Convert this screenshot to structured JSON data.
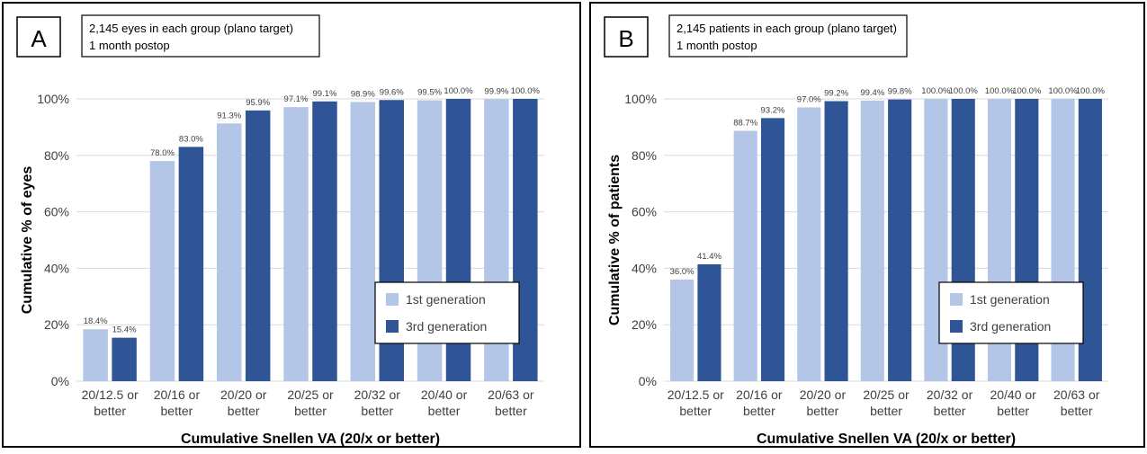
{
  "colors": {
    "gen1": "#b4c6e7",
    "gen3": "#2f5597",
    "grid": "#d9d9d9",
    "frame": "#000000"
  },
  "chart_data": [
    {
      "type": "bar",
      "panel_label": "A",
      "info_line1": "2,145 eyes in each group (plano target)",
      "info_line2": "1 month postop",
      "ylabel": "Cumulative % of eyes",
      "xlabel": "Cumulative Snellen VA (20/x or better)",
      "ylim": [
        0,
        100
      ],
      "yticks": [
        "0%",
        "20%",
        "40%",
        "60%",
        "80%",
        "100%"
      ],
      "categories": [
        [
          "20/12.5 or",
          "better"
        ],
        [
          "20/16 or",
          "better"
        ],
        [
          "20/20 or",
          "better"
        ],
        [
          "20/25 or",
          "better"
        ],
        [
          "20/32 or",
          "better"
        ],
        [
          "20/40 or",
          "better"
        ],
        [
          "20/63 or",
          "better"
        ]
      ],
      "series": [
        {
          "name": "1st generation",
          "values": [
            18.4,
            78.0,
            91.3,
            97.1,
            98.9,
            99.5,
            99.9
          ],
          "labels": [
            "18.4%",
            "78.0%",
            "91.3%",
            "97.1%",
            "98.9%",
            "99.5%",
            "99.9%"
          ]
        },
        {
          "name": "3rd generation",
          "values": [
            15.4,
            83.0,
            95.9,
            99.1,
            99.6,
            100.0,
            100.0
          ],
          "labels": [
            "15.4%",
            "83.0%",
            "95.9%",
            "99.1%",
            "99.6%",
            "100.0%",
            "100.0%"
          ]
        }
      ]
    },
    {
      "type": "bar",
      "panel_label": "B",
      "info_line1": "2,145 patients in each group (plano target)",
      "info_line2": "1 month postop",
      "ylabel": "Cumulative % of patients",
      "xlabel": "Cumulative Snellen VA (20/x or better)",
      "ylim": [
        0,
        100
      ],
      "yticks": [
        "0%",
        "20%",
        "40%",
        "60%",
        "80%",
        "100%"
      ],
      "categories": [
        [
          "20/12.5 or",
          "better"
        ],
        [
          "20/16 or",
          "better"
        ],
        [
          "20/20 or",
          "better"
        ],
        [
          "20/25 or",
          "better"
        ],
        [
          "20/32 or",
          "better"
        ],
        [
          "20/40 or",
          "better"
        ],
        [
          "20/63 or",
          "better"
        ]
      ],
      "series": [
        {
          "name": "1st generation",
          "values": [
            36.0,
            88.7,
            97.0,
            99.4,
            100.0,
            100.0,
            100.0
          ],
          "labels": [
            "36.0%",
            "88.7%",
            "97.0%",
            "99.4%",
            "100.0%",
            "100.0%",
            "100.0%"
          ]
        },
        {
          "name": "3rd generation",
          "values": [
            41.4,
            93.2,
            99.2,
            99.8,
            100.0,
            100.0,
            100.0
          ],
          "labels": [
            "41.4%",
            "93.2%",
            "99.2%",
            "99.8%",
            "100.0%",
            "100.0%",
            "100.0%"
          ]
        }
      ]
    }
  ]
}
